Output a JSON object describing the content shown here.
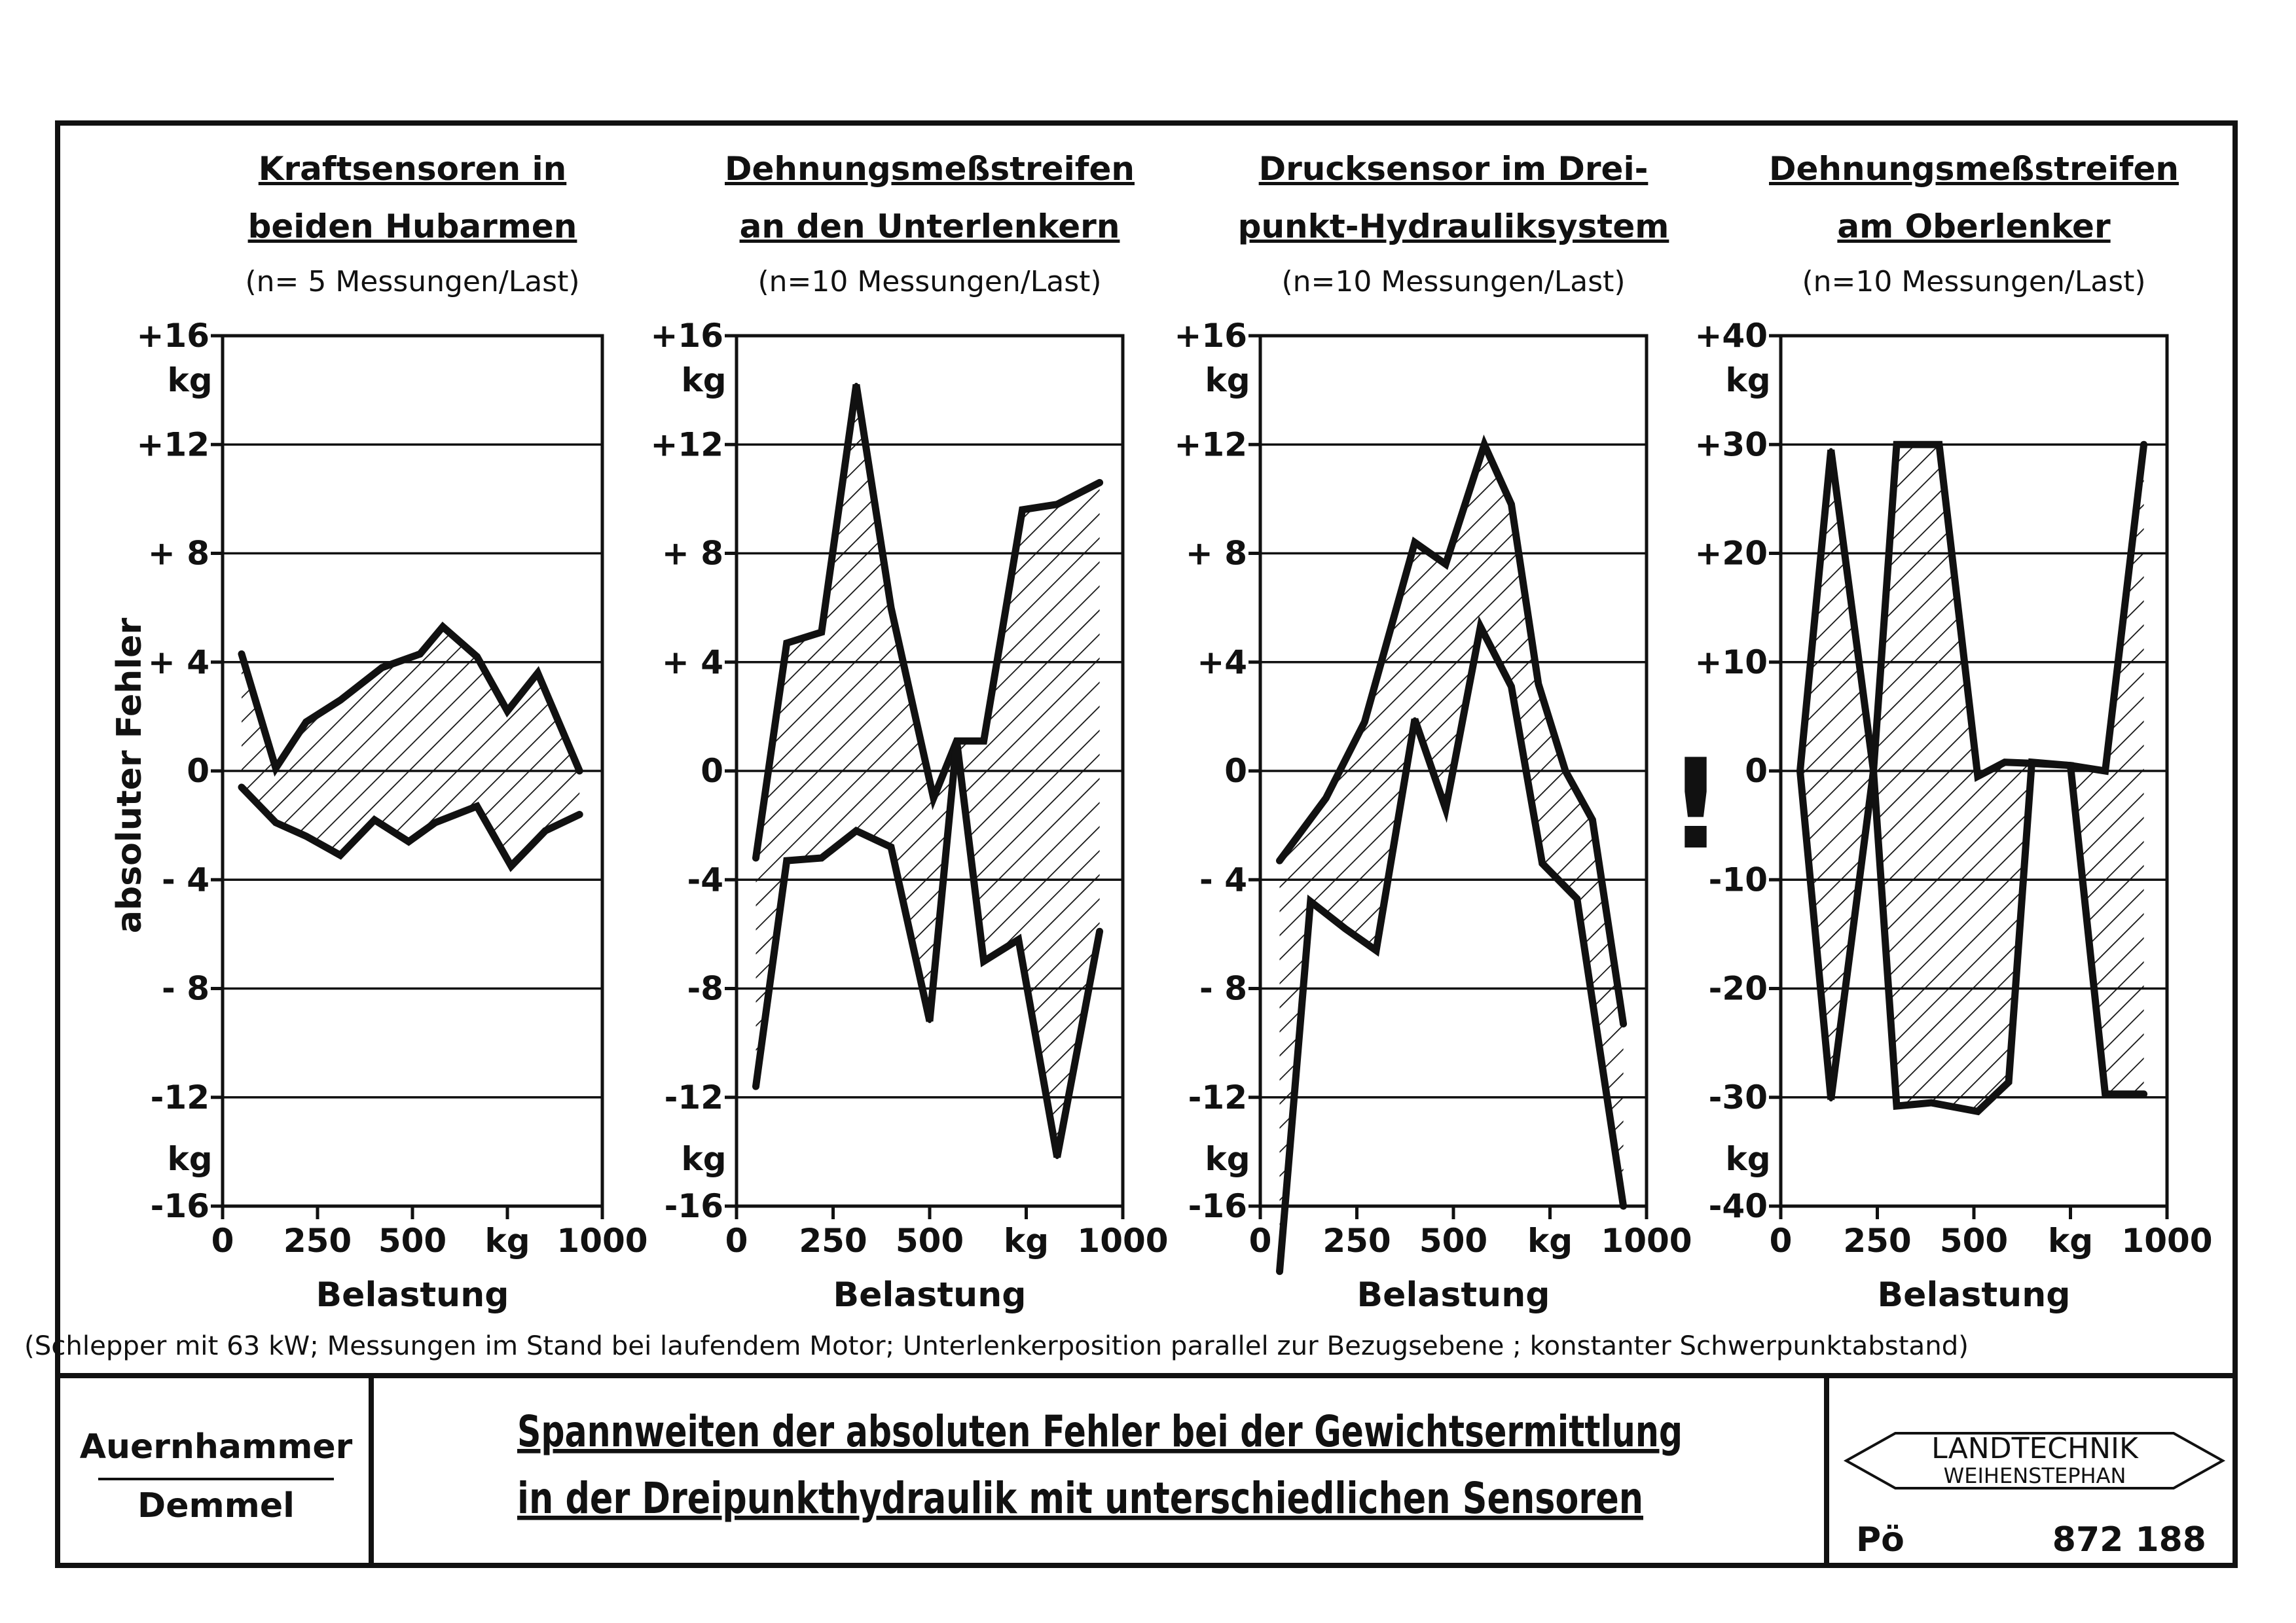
{
  "chart_data": [
    {
      "type": "area",
      "title": [
        "Kraftsensoren in",
        "beiden Hubarmen"
      ],
      "subtitle": "(n= 5 Messungen/Last)",
      "xlabel": "Belastung",
      "ylabel": "absoluter Fehler",
      "xlim": [
        0,
        1000
      ],
      "ylim": [
        -16,
        16
      ],
      "x_ticks": [
        0,
        250,
        500,
        750,
        1000
      ],
      "x_tick_labels": [
        "0",
        "250",
        "500",
        "kg",
        "1000"
      ],
      "y_ticks": [
        16,
        12,
        8,
        4,
        0,
        -4,
        -8,
        -12,
        -16
      ],
      "y_tick_labels": [
        "+16",
        "+12",
        "+ 8",
        "+ 4",
        "0",
        "- 4",
        "- 8",
        "-12",
        "-16"
      ],
      "y_unit_labels": [
        "kg",
        "kg"
      ],
      "grid": true,
      "series": [
        {
          "role": "upper",
          "points": [
            [
              50,
              4.3
            ],
            [
              140,
              0.1
            ],
            [
              220,
              1.8
            ],
            [
              310,
              2.6
            ],
            [
              420,
              3.8
            ],
            [
              520,
              4.3
            ],
            [
              580,
              5.3
            ],
            [
              670,
              4.2
            ],
            [
              750,
              2.2
            ],
            [
              830,
              3.6
            ],
            [
              940,
              0
            ]
          ]
        },
        {
          "role": "lower",
          "points": [
            [
              50,
              -0.6
            ],
            [
              140,
              -1.9
            ],
            [
              220,
              -2.4
            ],
            [
              310,
              -3.1
            ],
            [
              400,
              -1.8
            ],
            [
              490,
              -2.6
            ],
            [
              560,
              -1.9
            ],
            [
              670,
              -1.3
            ],
            [
              760,
              -3.5
            ],
            [
              850,
              -2.2
            ],
            [
              940,
              -1.6
            ]
          ]
        }
      ]
    },
    {
      "type": "area",
      "title": [
        "Dehnungsmeßstreifen",
        "an den Unterlenkern"
      ],
      "subtitle": "(n=10 Messungen/Last)",
      "xlabel": "Belastung",
      "xlim": [
        0,
        1000
      ],
      "ylim": [
        -16,
        16
      ],
      "x_ticks": [
        0,
        250,
        500,
        750,
        1000
      ],
      "x_tick_labels": [
        "0",
        "250",
        "500",
        "kg",
        "1000"
      ],
      "y_ticks": [
        16,
        12,
        8,
        4,
        0,
        -4,
        -8,
        -12,
        -16
      ],
      "y_tick_labels": [
        "+16",
        "+12",
        "+ 8",
        "+ 4",
        "0",
        "-4",
        "-8",
        "-12",
        "-16"
      ],
      "y_unit_labels": [
        "kg",
        "kg"
      ],
      "grid": true,
      "series": [
        {
          "role": "upper",
          "points": [
            [
              50,
              -3.2
            ],
            [
              130,
              4.7
            ],
            [
              220,
              5.1
            ],
            [
              310,
              14.2
            ],
            [
              400,
              6.0
            ],
            [
              510,
              -1.0
            ],
            [
              570,
              1.1
            ],
            [
              640,
              1.1
            ],
            [
              740,
              9.6
            ],
            [
              830,
              9.8
            ],
            [
              940,
              10.6
            ]
          ]
        },
        {
          "role": "lower",
          "points": [
            [
              50,
              -11.6
            ],
            [
              130,
              -3.3
            ],
            [
              220,
              -3.2
            ],
            [
              310,
              -2.2
            ],
            [
              400,
              -2.8
            ],
            [
              500,
              -9.2
            ],
            [
              570,
              1.1
            ],
            [
              640,
              -7.0
            ],
            [
              730,
              -6.2
            ],
            [
              830,
              -14.2
            ],
            [
              940,
              -5.9
            ]
          ]
        }
      ]
    },
    {
      "type": "area",
      "title": [
        "Drucksensor im Drei-",
        "punkt-Hydrauliksystem"
      ],
      "subtitle": "(n=10 Messungen/Last)",
      "xlabel": "Belastung",
      "xlim": [
        0,
        1000
      ],
      "ylim": [
        -16,
        16
      ],
      "x_ticks": [
        0,
        250,
        500,
        750,
        1000
      ],
      "x_tick_labels": [
        "0",
        "250",
        "500",
        "kg",
        "1000"
      ],
      "y_ticks": [
        16,
        12,
        8,
        4,
        0,
        -4,
        -8,
        -12,
        -16
      ],
      "y_tick_labels": [
        "+16",
        "+12",
        "+ 8",
        "+4",
        "0",
        "- 4",
        "- 8",
        "-12",
        "-16"
      ],
      "y_unit_labels": [
        "kg",
        "kg"
      ],
      "grid": true,
      "series": [
        {
          "role": "upper",
          "points": [
            [
              50,
              -3.3
            ],
            [
              170,
              -1.0
            ],
            [
              270,
              1.8
            ],
            [
              400,
              8.4
            ],
            [
              480,
              7.6
            ],
            [
              580,
              12.0
            ],
            [
              650,
              9.8
            ],
            [
              720,
              3.2
            ],
            [
              790,
              0.0
            ],
            [
              860,
              -1.8
            ],
            [
              940,
              -9.3
            ]
          ]
        },
        {
          "role": "lower",
          "points": [
            [
              50,
              -18.4
            ],
            [
              130,
              -4.8
            ],
            [
              220,
              -5.8
            ],
            [
              300,
              -6.6
            ],
            [
              400,
              1.9
            ],
            [
              480,
              -1.4
            ],
            [
              570,
              5.3
            ],
            [
              650,
              3.1
            ],
            [
              730,
              -3.4
            ],
            [
              820,
              -4.7
            ],
            [
              940,
              -16.0
            ]
          ]
        }
      ]
    },
    {
      "type": "area",
      "title": [
        "Dehnungsmeßstreifen",
        "am Oberlenker"
      ],
      "subtitle": "(n=10 Messungen/Last)",
      "xlabel": "Belastung",
      "xlim": [
        0,
        1000
      ],
      "ylim": [
        -40,
        40
      ],
      "x_ticks": [
        0,
        250,
        500,
        750,
        1000
      ],
      "x_tick_labels": [
        "0",
        "250",
        "500",
        "kg",
        "1000"
      ],
      "y_ticks": [
        40,
        30,
        20,
        10,
        0,
        -10,
        -20,
        -30,
        -40
      ],
      "y_tick_labels": [
        "+40",
        "+30",
        "+20",
        "+10",
        "0",
        "-10",
        "-20",
        "-30",
        "-40"
      ],
      "y_unit_labels": [
        "kg",
        "kg"
      ],
      "grid": true,
      "series": [
        {
          "role": "upper",
          "points": [
            [
              50,
              0
            ],
            [
              130,
              29.5
            ],
            [
              240,
              0
            ],
            [
              300,
              30.0
            ],
            [
              410,
              30.0
            ],
            [
              510,
              -0.5
            ],
            [
              580,
              0.8
            ],
            [
              650,
              0.7
            ],
            [
              750,
              0.5
            ],
            [
              840,
              0
            ],
            [
              940,
              30.0
            ]
          ]
        },
        {
          "role": "lower",
          "points": [
            [
              50,
              0
            ],
            [
              130,
              -30.2
            ],
            [
              240,
              0
            ],
            [
              300,
              -30.8
            ],
            [
              390,
              -30.5
            ],
            [
              510,
              -31.3
            ],
            [
              590,
              -28.6
            ],
            [
              650,
              0.8
            ],
            [
              750,
              0.5
            ],
            [
              840,
              -29.7
            ],
            [
              940,
              -29.7
            ]
          ]
        }
      ]
    }
  ],
  "stray_mark": "!",
  "footnote": "(Schlepper mit 63 kW; Messungen im Stand bei laufendem Motor; Unterlenkerposition parallel zur Bezugsebene ; konstanter Schwerpunktabstand)",
  "authors": [
    "Auernhammer",
    "Demmel"
  ],
  "caption": [
    "Spannweiten der absoluten Fehler bei der Gewichtsermittlung",
    "in der Dreipunkthydraulik mit unterschiedlichen Sensoren"
  ],
  "logo": {
    "line1": "LANDTECHNIK",
    "line2": "WEIHENSTEPHAN"
  },
  "initials": "Pö",
  "figure_number": "872 188"
}
